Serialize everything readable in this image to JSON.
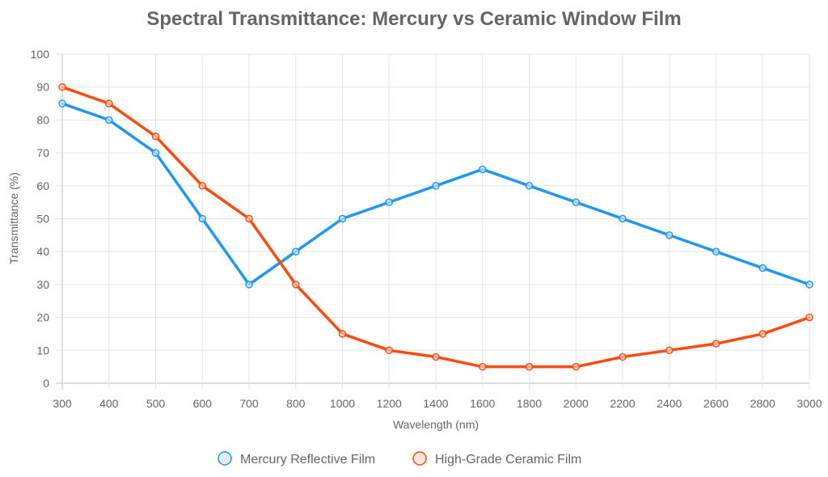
{
  "chart_data": {
    "type": "line",
    "title": "Spectral Transmittance: Mercury vs Ceramic Window Film",
    "xlabel": "Wavelength (nm)",
    "ylabel": "Transmittance (%)",
    "x": [
      "300",
      "400",
      "500",
      "600",
      "700",
      "800",
      "1000",
      "1200",
      "1400",
      "1600",
      "1800",
      "2000",
      "2200",
      "2400",
      "2600",
      "2800",
      "3000"
    ],
    "ylim": [
      0,
      100
    ],
    "yticks": [
      0,
      10,
      20,
      30,
      40,
      50,
      60,
      70,
      80,
      90,
      100
    ],
    "grid": true,
    "legend_position": "bottom",
    "series": [
      {
        "name": "Mercury Reflective Film",
        "color": "#2196f3",
        "fill": "#e3f0fd",
        "values": [
          85,
          80,
          70,
          50,
          30,
          40,
          50,
          55,
          60,
          65,
          60,
          55,
          50,
          45,
          40,
          35,
          30
        ]
      },
      {
        "name": "High-Grade Ceramic Film",
        "color": "#ff4a0f",
        "fill": "#ffe6dd",
        "values": [
          90,
          85,
          75,
          60,
          50,
          30,
          15,
          10,
          8,
          5,
          5,
          5,
          8,
          10,
          12,
          15,
          20
        ]
      }
    ]
  }
}
